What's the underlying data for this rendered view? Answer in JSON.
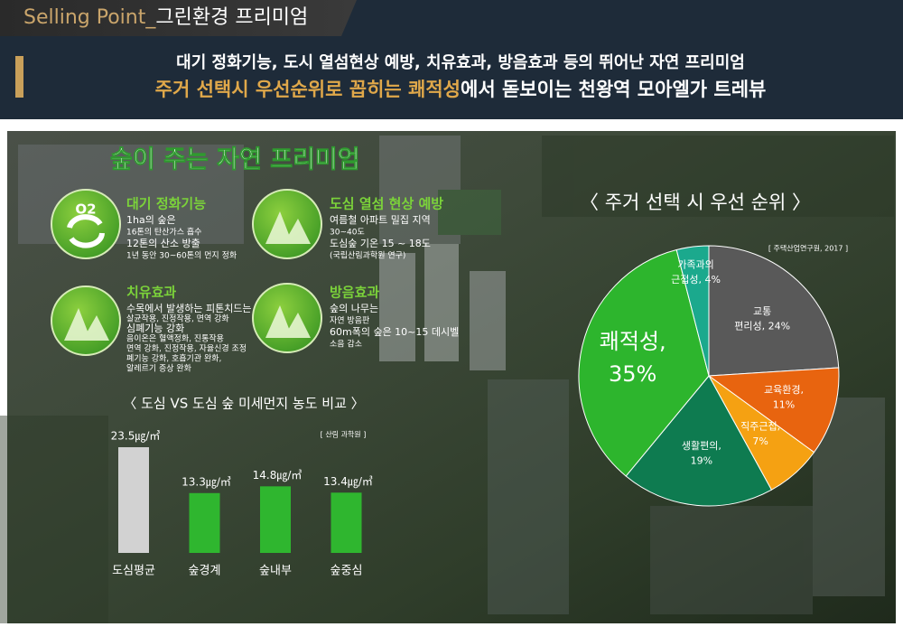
{
  "header": {
    "tab_prefix": "Selling Point_",
    "tab_title": "그린환경 프리미엄",
    "line1": "대기 정화기능, 도시 열섬현상 예방, 치유효과, 방음효과 등의 뛰어난 자연 프리미엄",
    "line2_highlight": "주거 선택시 우선순위로 꼽히는 쾌적성",
    "line2_rest": "에서 돋보이는 천왕역 모아엘가 트레뷰"
  },
  "section_title": "숲이 주는 자연 프리미엄",
  "features": [
    {
      "icon_label": "O2",
      "heading": "대기 정화기능",
      "lines": [
        "1ha의 숲은",
        "16톤의 탄산가스 흡수",
        "12톤의 산소 방출",
        "1년 동안 30~60톤의 먼지 정화"
      ]
    },
    {
      "heading": "도심 열섬 현상 예방",
      "lines": [
        "여름철 아파트 밀집 지역",
        "30~40도",
        "도심숲 기온 15 ~ 18도",
        "(국립산림과학원 연구)"
      ]
    },
    {
      "heading": "치유효과",
      "lines": [
        "수목에서 발생하는 피톤치드는",
        "살균작용, 진정작용, 면역 강화",
        "심폐기능 강화",
        "음이온은 혈액정화, 진통작용",
        "면역 강화, 진정작용, 자율신경 조정",
        "폐기능 강화, 호흡기관 완화,",
        "알레르기 증상 완화"
      ]
    },
    {
      "heading": "방음효과",
      "lines": [
        "숲의 나무는",
        "자연 방음판",
        "60m폭의 숲은 10~15 데시벨",
        "소음 감소"
      ]
    }
  ],
  "chart_data": [
    {
      "type": "bar",
      "title": "〈 도심 VS 도심 숲 미세먼지 농도 비교 〉",
      "note": "[ 산림 과학원 ]",
      "categories": [
        "도심평균",
        "숲경계",
        "숲내부",
        "숲중심"
      ],
      "values": [
        23.5,
        13.3,
        14.8,
        13.4
      ],
      "value_labels": [
        "23.5㎍/㎥",
        "13.3㎍/㎥",
        "14.8㎍/㎥",
        "13.4㎍/㎥"
      ],
      "colors": [
        "#d2d2d2",
        "#2fb62f",
        "#2fb62f",
        "#2fb62f"
      ]
    },
    {
      "type": "pie",
      "title": "〈 주거 선택 시 우선 순위 〉",
      "source": "[ 주택산업연구원, 2017 ]",
      "values": [
        24,
        11,
        7,
        19,
        35,
        4
      ],
      "value_labels": [
        [
          "교통",
          "편리성, 24%"
        ],
        [
          "교육환경,",
          "11%"
        ],
        [
          "직주근접,",
          "7%"
        ],
        [
          "생활편의,",
          "19%"
        ],
        [
          "쾌적성,",
          "35%"
        ],
        [
          "가족과의",
          "근접성, 4%"
        ]
      ],
      "colors": [
        "#595959",
        "#e8640f",
        "#f5a112",
        "#0e7b50",
        "#2db52d",
        "#1ba98d"
      ]
    }
  ]
}
